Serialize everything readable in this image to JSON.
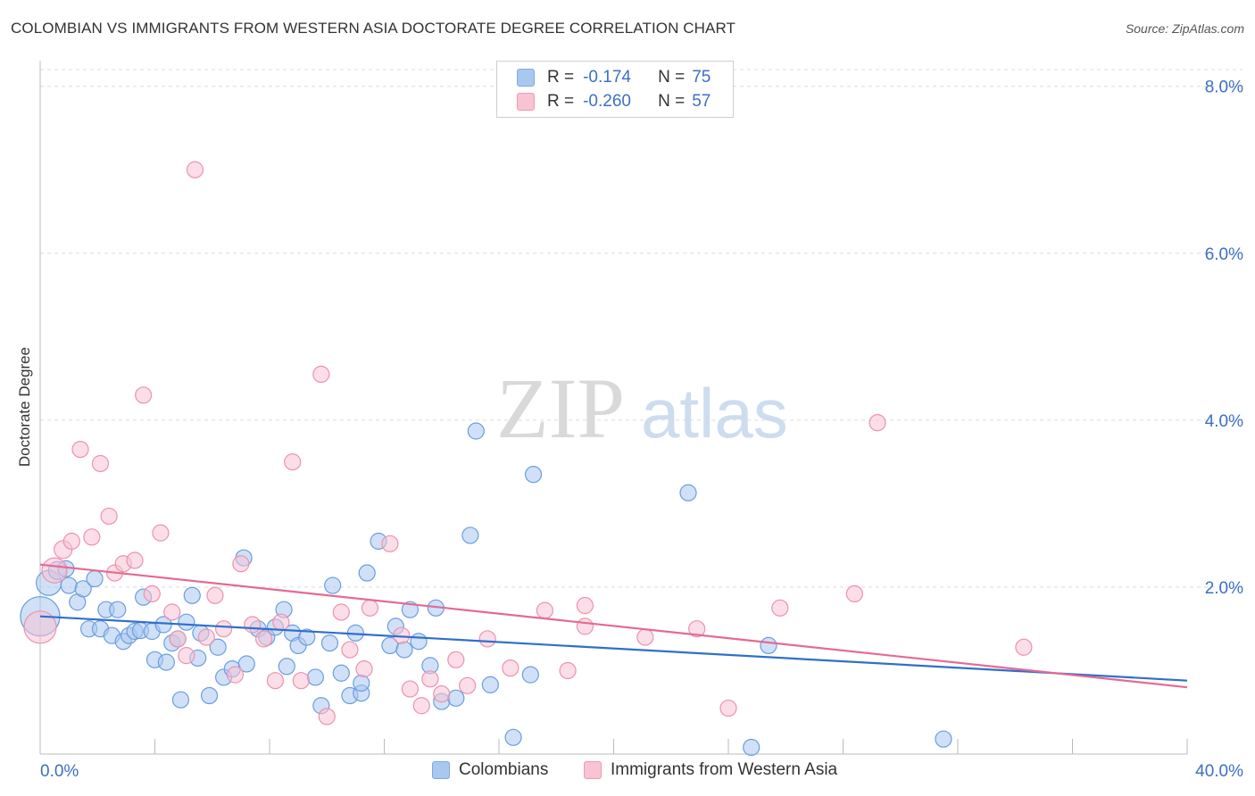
{
  "title": "COLOMBIAN VS IMMIGRANTS FROM WESTERN ASIA DOCTORATE DEGREE CORRELATION CHART",
  "source": "Source: ZipAtlas.com",
  "watermark": {
    "part1": "ZIP",
    "part2": "atlas"
  },
  "legend_top": {
    "rows": [
      {
        "r_label": "R =",
        "r_value": "-0.174",
        "n_label": "N =",
        "n_value": "75",
        "color": "#a9c8f0",
        "border": "#7fa8df"
      },
      {
        "r_label": "R =",
        "r_value": "-0.260",
        "n_label": "N =",
        "n_value": "57",
        "color": "#f8c3d3",
        "border": "#ee9ab3"
      }
    ]
  },
  "legend_bottom": [
    {
      "label": "Colombians",
      "color": "#a9c8f0",
      "border": "#7fa8df"
    },
    {
      "label": "Immigrants from Western Asia",
      "color": "#f8c3d3",
      "border": "#ee9ab3"
    }
  ],
  "chart_data": {
    "type": "scatter",
    "title": "COLOMBIAN VS IMMIGRANTS FROM WESTERN ASIA DOCTORATE DEGREE CORRELATION CHART",
    "xlabel": "",
    "ylabel": "Doctorate Degree",
    "xlim": [
      0,
      40
    ],
    "ylim": [
      0,
      8.2
    ],
    "x_tick_labels": [
      "0.0%",
      "40.0%"
    ],
    "y_ticks": [
      2,
      4,
      6,
      8
    ],
    "y_tick_labels": [
      "2.0%",
      "4.0%",
      "6.0%",
      "8.0%"
    ],
    "grid": "horizontal dashed",
    "legend_placement": "top-center and bottom",
    "series": [
      {
        "name": "Colombians",
        "color": "#6a9de0",
        "fill": "#a9c8f0",
        "trend": {
          "x": [
            0,
            40
          ],
          "y": [
            1.65,
            0.88
          ],
          "color": "#2f6fcc"
        },
        "points": [
          [
            0.0,
            1.65,
            22
          ],
          [
            0.3,
            2.05,
            14
          ],
          [
            0.6,
            2.2,
            10
          ],
          [
            0.9,
            2.22,
            9
          ],
          [
            1.0,
            2.02,
            9
          ],
          [
            1.3,
            1.82,
            9
          ],
          [
            1.5,
            1.98,
            9
          ],
          [
            1.9,
            2.1,
            9
          ],
          [
            1.7,
            1.5,
            9
          ],
          [
            2.1,
            1.5,
            9
          ],
          [
            2.3,
            1.73,
            9
          ],
          [
            2.5,
            1.42,
            9
          ],
          [
            2.7,
            1.73,
            9
          ],
          [
            2.9,
            1.35,
            9
          ],
          [
            3.1,
            1.42,
            9
          ],
          [
            3.3,
            1.47,
            9
          ],
          [
            3.5,
            1.48,
            9
          ],
          [
            3.6,
            1.88,
            9
          ],
          [
            3.9,
            1.47,
            9
          ],
          [
            4.0,
            1.13,
            9
          ],
          [
            4.3,
            1.55,
            9
          ],
          [
            4.4,
            1.1,
            9
          ],
          [
            4.6,
            1.33,
            9
          ],
          [
            4.8,
            1.38,
            9
          ],
          [
            5.1,
            1.58,
            9
          ],
          [
            4.9,
            0.65,
            9
          ],
          [
            5.3,
            1.9,
            9
          ],
          [
            5.5,
            1.15,
            9
          ],
          [
            5.6,
            1.45,
            9
          ],
          [
            5.9,
            0.7,
            9
          ],
          [
            6.2,
            1.28,
            9
          ],
          [
            6.4,
            0.92,
            9
          ],
          [
            6.7,
            1.02,
            9
          ],
          [
            7.1,
            2.35,
            9
          ],
          [
            7.2,
            1.08,
            9
          ],
          [
            7.6,
            1.5,
            9
          ],
          [
            7.9,
            1.4,
            9
          ],
          [
            8.2,
            1.52,
            9
          ],
          [
            8.5,
            1.73,
            9
          ],
          [
            8.6,
            1.05,
            9
          ],
          [
            8.8,
            1.45,
            9
          ],
          [
            9.0,
            1.3,
            9
          ],
          [
            9.3,
            1.4,
            9
          ],
          [
            9.6,
            0.92,
            9
          ],
          [
            9.8,
            0.58,
            9
          ],
          [
            10.1,
            1.33,
            9
          ],
          [
            10.2,
            2.02,
            9
          ],
          [
            10.5,
            0.97,
            9
          ],
          [
            10.8,
            0.7,
            9
          ],
          [
            11.0,
            1.45,
            9
          ],
          [
            11.2,
            0.73,
            9
          ],
          [
            11.4,
            2.17,
            9
          ],
          [
            11.2,
            0.85,
            9
          ],
          [
            11.8,
            2.55,
            9
          ],
          [
            12.2,
            1.3,
            9
          ],
          [
            12.4,
            1.53,
            9
          ],
          [
            12.7,
            1.25,
            9
          ],
          [
            12.9,
            1.73,
            9
          ],
          [
            13.2,
            1.35,
            9
          ],
          [
            13.6,
            1.06,
            9
          ],
          [
            13.8,
            1.75,
            9
          ],
          [
            14.0,
            0.63,
            9
          ],
          [
            14.5,
            0.67,
            9
          ],
          [
            15.0,
            2.62,
            9
          ],
          [
            15.2,
            3.87,
            9
          ],
          [
            15.7,
            0.83,
            9
          ],
          [
            16.5,
            0.2,
            9
          ],
          [
            17.1,
            0.95,
            9
          ],
          [
            17.2,
            3.35,
            9
          ],
          [
            22.6,
            3.13,
            9
          ],
          [
            24.8,
            0.08,
            9
          ],
          [
            25.4,
            1.3,
            9
          ],
          [
            31.5,
            0.18,
            9
          ]
        ]
      },
      {
        "name": "Immigrants from Western Asia",
        "color": "#ec92ad",
        "fill": "#f8c3d3",
        "trend": {
          "x": [
            0,
            40
          ],
          "y": [
            2.27,
            0.8
          ],
          "color": "#e46a92"
        },
        "points": [
          [
            0.0,
            1.52,
            18
          ],
          [
            0.5,
            2.2,
            14
          ],
          [
            0.8,
            2.45,
            10
          ],
          [
            1.1,
            2.55,
            9
          ],
          [
            1.4,
            3.65,
            9
          ],
          [
            1.8,
            2.6,
            9
          ],
          [
            2.1,
            3.48,
            9
          ],
          [
            2.4,
            2.85,
            9
          ],
          [
            2.6,
            2.17,
            9
          ],
          [
            2.9,
            2.28,
            9
          ],
          [
            3.3,
            2.32,
            9
          ],
          [
            3.6,
            4.3,
            9
          ],
          [
            3.9,
            1.92,
            9
          ],
          [
            4.2,
            2.65,
            9
          ],
          [
            4.6,
            1.7,
            9
          ],
          [
            4.8,
            1.38,
            9
          ],
          [
            5.1,
            1.18,
            9
          ],
          [
            5.4,
            7.0,
            9
          ],
          [
            5.8,
            1.4,
            9
          ],
          [
            6.1,
            1.9,
            9
          ],
          [
            6.4,
            1.5,
            9
          ],
          [
            6.8,
            0.95,
            9
          ],
          [
            7.0,
            2.28,
            9
          ],
          [
            7.4,
            1.55,
            9
          ],
          [
            7.8,
            1.38,
            9
          ],
          [
            8.2,
            0.88,
            9
          ],
          [
            8.4,
            1.58,
            9
          ],
          [
            8.8,
            3.5,
            9
          ],
          [
            9.1,
            0.88,
            9
          ],
          [
            9.8,
            4.55,
            9
          ],
          [
            10.0,
            0.45,
            9
          ],
          [
            10.5,
            1.7,
            9
          ],
          [
            10.8,
            1.25,
            9
          ],
          [
            11.3,
            1.02,
            9
          ],
          [
            11.5,
            1.75,
            9
          ],
          [
            12.2,
            2.52,
            9
          ],
          [
            12.6,
            1.42,
            9
          ],
          [
            12.9,
            0.78,
            9
          ],
          [
            13.3,
            0.58,
            9
          ],
          [
            13.6,
            0.9,
            9
          ],
          [
            14.0,
            0.72,
            9
          ],
          [
            14.5,
            1.13,
            9
          ],
          [
            14.9,
            0.82,
            9
          ],
          [
            15.6,
            1.38,
            9
          ],
          [
            16.4,
            1.03,
            9
          ],
          [
            17.6,
            1.72,
            9
          ],
          [
            18.4,
            1.0,
            9
          ],
          [
            19.0,
            1.53,
            9
          ],
          [
            19.0,
            1.78,
            9
          ],
          [
            21.1,
            1.4,
            9
          ],
          [
            22.9,
            1.5,
            9
          ],
          [
            24.0,
            0.55,
            9
          ],
          [
            25.8,
            1.75,
            9
          ],
          [
            28.4,
            1.92,
            9
          ],
          [
            29.2,
            3.97,
            9
          ],
          [
            34.3,
            1.28,
            9
          ]
        ]
      }
    ]
  }
}
